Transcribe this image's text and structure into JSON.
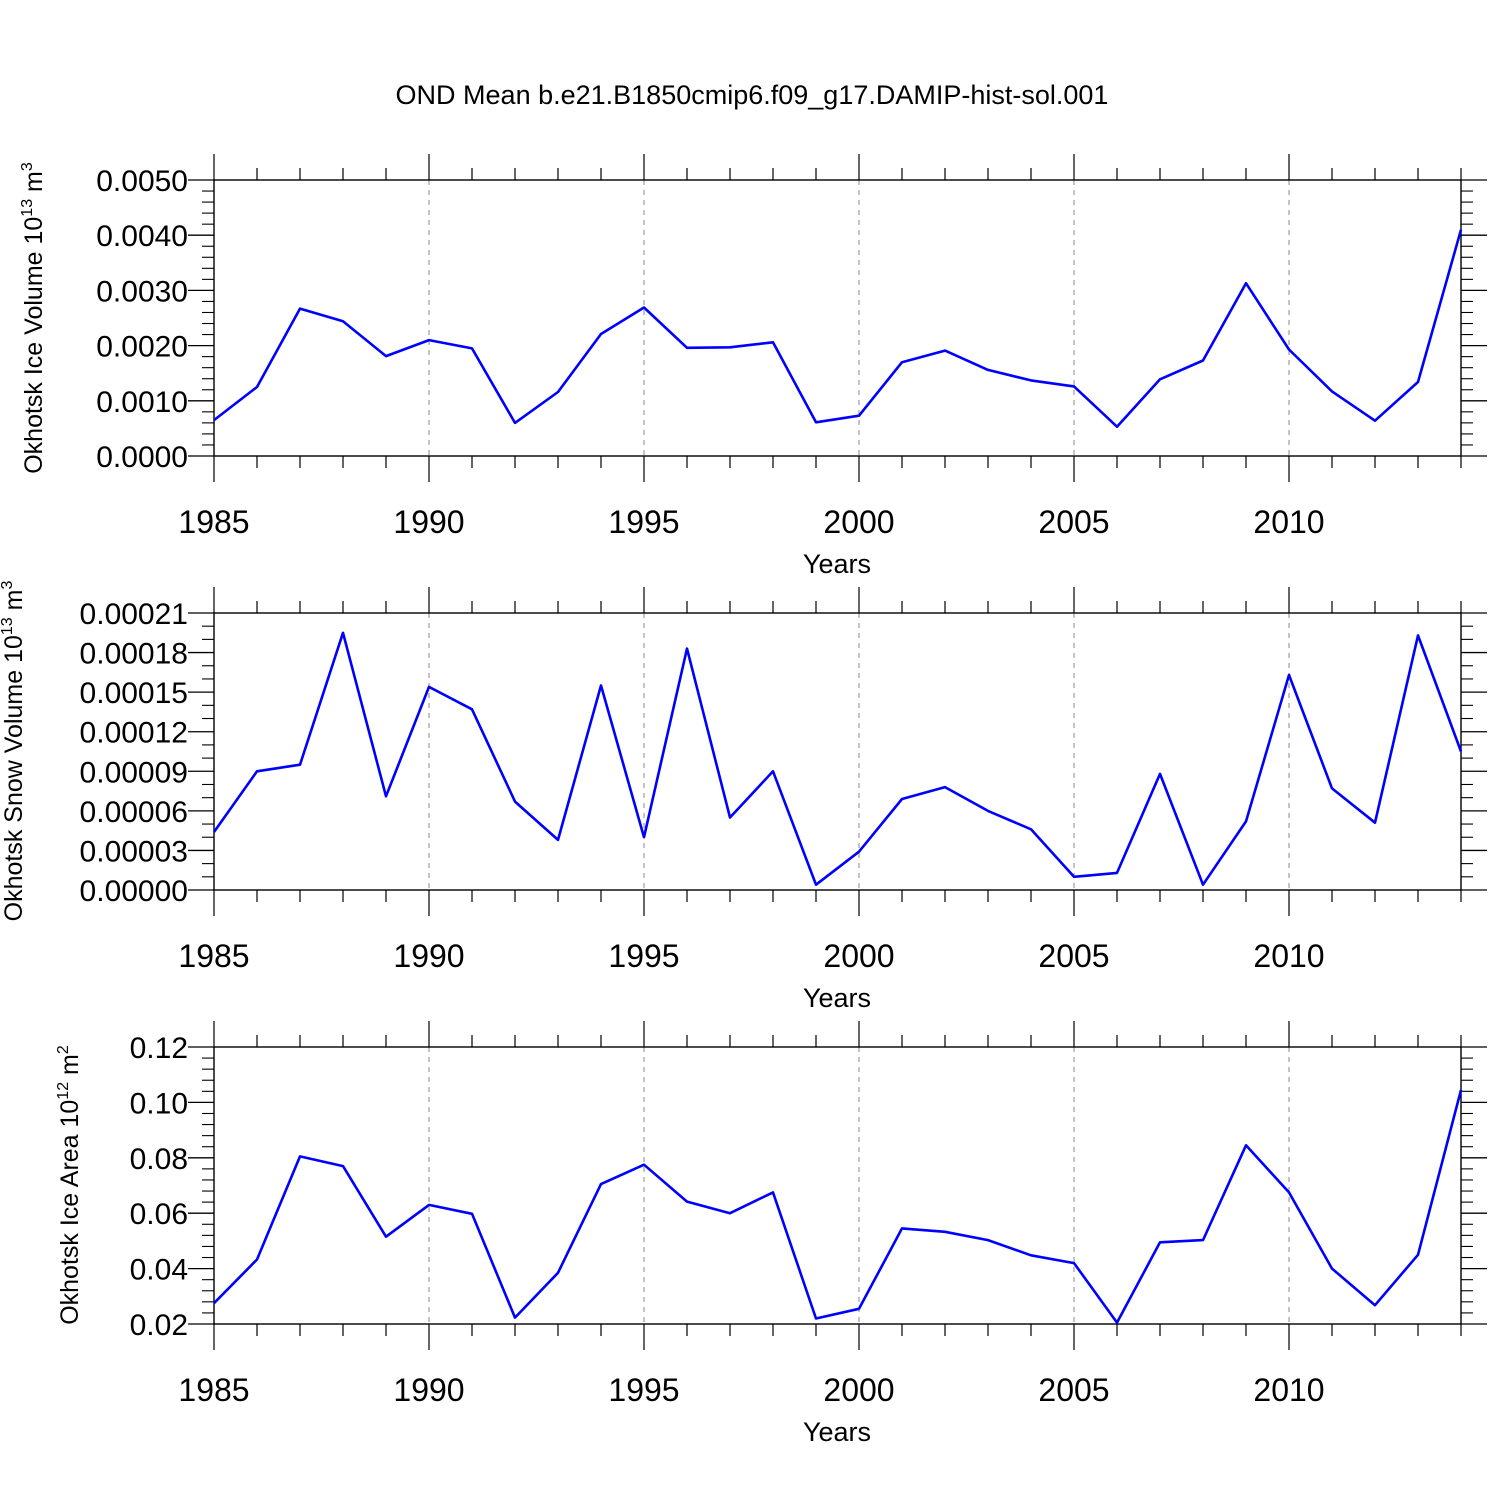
{
  "title": "OND Mean b.e21.B1850cmip6.f09_g17.DAMIP-hist-sol.001",
  "chart_data": [
    {
      "type": "line",
      "ylabel": "Okhotsk Ice Volume 10",
      "ylabel_exp": "13",
      "ylabel_unit": " m",
      "ylabel_unit_exp": "3",
      "xlabel": "Years",
      "xlim": [
        1985,
        2014
      ],
      "ylim": [
        0,
        0.005
      ],
      "yticks": [
        0.0,
        0.001,
        0.002,
        0.003,
        0.004,
        0.005
      ],
      "ytick_labels": [
        "0.0000",
        "0.0010",
        "0.0020",
        "0.0030",
        "0.0040",
        "0.0050"
      ],
      "yminor_step": 0.0002,
      "line_color": "#0000ff",
      "series": [
        {
          "name": "Okhotsk Ice Volume",
          "x": [
            1985,
            1986,
            1987,
            1988,
            1989,
            1990,
            1991,
            1992,
            1993,
            1994,
            1995,
            1996,
            1997,
            1998,
            1999,
            2000,
            2001,
            2002,
            2003,
            2004,
            2005,
            2006,
            2007,
            2008,
            2009,
            2010,
            2011,
            2012,
            2013,
            2014
          ],
          "values": [
            0.00065,
            0.00125,
            0.00267,
            0.00244,
            0.00181,
            0.0021,
            0.00195,
            0.0006,
            0.00116,
            0.00221,
            0.00269,
            0.00196,
            0.00197,
            0.00206,
            0.00061,
            0.00073,
            0.0017,
            0.00191,
            0.00156,
            0.00137,
            0.00126,
            0.00053,
            0.00139,
            0.00173,
            0.00313,
            0.00193,
            0.00117,
            0.00064,
            0.00134,
            0.0041
          ]
        }
      ]
    },
    {
      "type": "line",
      "ylabel": "Okhotsk Snow Volume 10",
      "ylabel_exp": "13",
      "ylabel_unit": " m",
      "ylabel_unit_exp": "3",
      "xlabel": "Years",
      "xlim": [
        1985,
        2014
      ],
      "ylim": [
        0,
        0.00021
      ],
      "yticks": [
        0.0,
        3e-05,
        6e-05,
        9e-05,
        0.00012,
        0.00015,
        0.00018,
        0.00021
      ],
      "ytick_labels": [
        "0.00000",
        "0.00003",
        "0.00006",
        "0.00009",
        "0.00012",
        "0.00015",
        "0.00018",
        "0.00021"
      ],
      "yminor_step": 1e-05,
      "line_color": "#0000ff",
      "series": [
        {
          "name": "Okhotsk Snow Volume",
          "x": [
            1985,
            1986,
            1987,
            1988,
            1989,
            1990,
            1991,
            1992,
            1993,
            1994,
            1995,
            1996,
            1997,
            1998,
            1999,
            2000,
            2001,
            2002,
            2003,
            2004,
            2005,
            2006,
            2007,
            2008,
            2009,
            2010,
            2011,
            2012,
            2013,
            2014
          ],
          "values": [
            4.4e-05,
            9e-05,
            9.5e-05,
            0.000195,
            7.1e-05,
            0.000154,
            0.000137,
            6.7e-05,
            3.8e-05,
            0.000155,
            4e-05,
            0.000183,
            5.5e-05,
            9e-05,
            4e-06,
            2.9e-05,
            6.9e-05,
            7.8e-05,
            6e-05,
            4.6e-05,
            1e-05,
            1.3e-05,
            8.8e-05,
            4e-06,
            5.2e-05,
            0.000163,
            7.7e-05,
            5.1e-05,
            0.000193,
            0.000105
          ]
        }
      ]
    },
    {
      "type": "line",
      "ylabel": "Okhotsk Ice Area 10",
      "ylabel_exp": "12",
      "ylabel_unit": " m",
      "ylabel_unit_exp": "2",
      "xlabel": "Years",
      "xlim": [
        1985,
        2014
      ],
      "ylim": [
        0.02,
        0.12
      ],
      "yticks": [
        0.02,
        0.04,
        0.06,
        0.08,
        0.1,
        0.12
      ],
      "ytick_labels": [
        "0.02",
        "0.04",
        "0.06",
        "0.08",
        "0.10",
        "0.12"
      ],
      "yminor_step": 0.004,
      "line_color": "#0000ff",
      "series": [
        {
          "name": "Okhotsk Ice Area",
          "x": [
            1985,
            1986,
            1987,
            1988,
            1989,
            1990,
            1991,
            1992,
            1993,
            1994,
            1995,
            1996,
            1997,
            1998,
            1999,
            2000,
            2001,
            2002,
            2003,
            2004,
            2005,
            2006,
            2007,
            2008,
            2009,
            2010,
            2011,
            2012,
            2013,
            2014
          ],
          "values": [
            0.0275,
            0.0433,
            0.0805,
            0.077,
            0.0515,
            0.063,
            0.0598,
            0.0223,
            0.0385,
            0.0705,
            0.0775,
            0.0642,
            0.06,
            0.0675,
            0.022,
            0.0255,
            0.0545,
            0.0533,
            0.0503,
            0.0448,
            0.042,
            0.0205,
            0.0495,
            0.0503,
            0.0845,
            0.0675,
            0.04,
            0.0268,
            0.045,
            0.1045
          ]
        }
      ]
    }
  ],
  "xticks": [
    1985,
    1990,
    1995,
    2000,
    2005,
    2010
  ],
  "xtick_labels": [
    "1985",
    "1990",
    "1995",
    "2000",
    "2005",
    "2010"
  ]
}
